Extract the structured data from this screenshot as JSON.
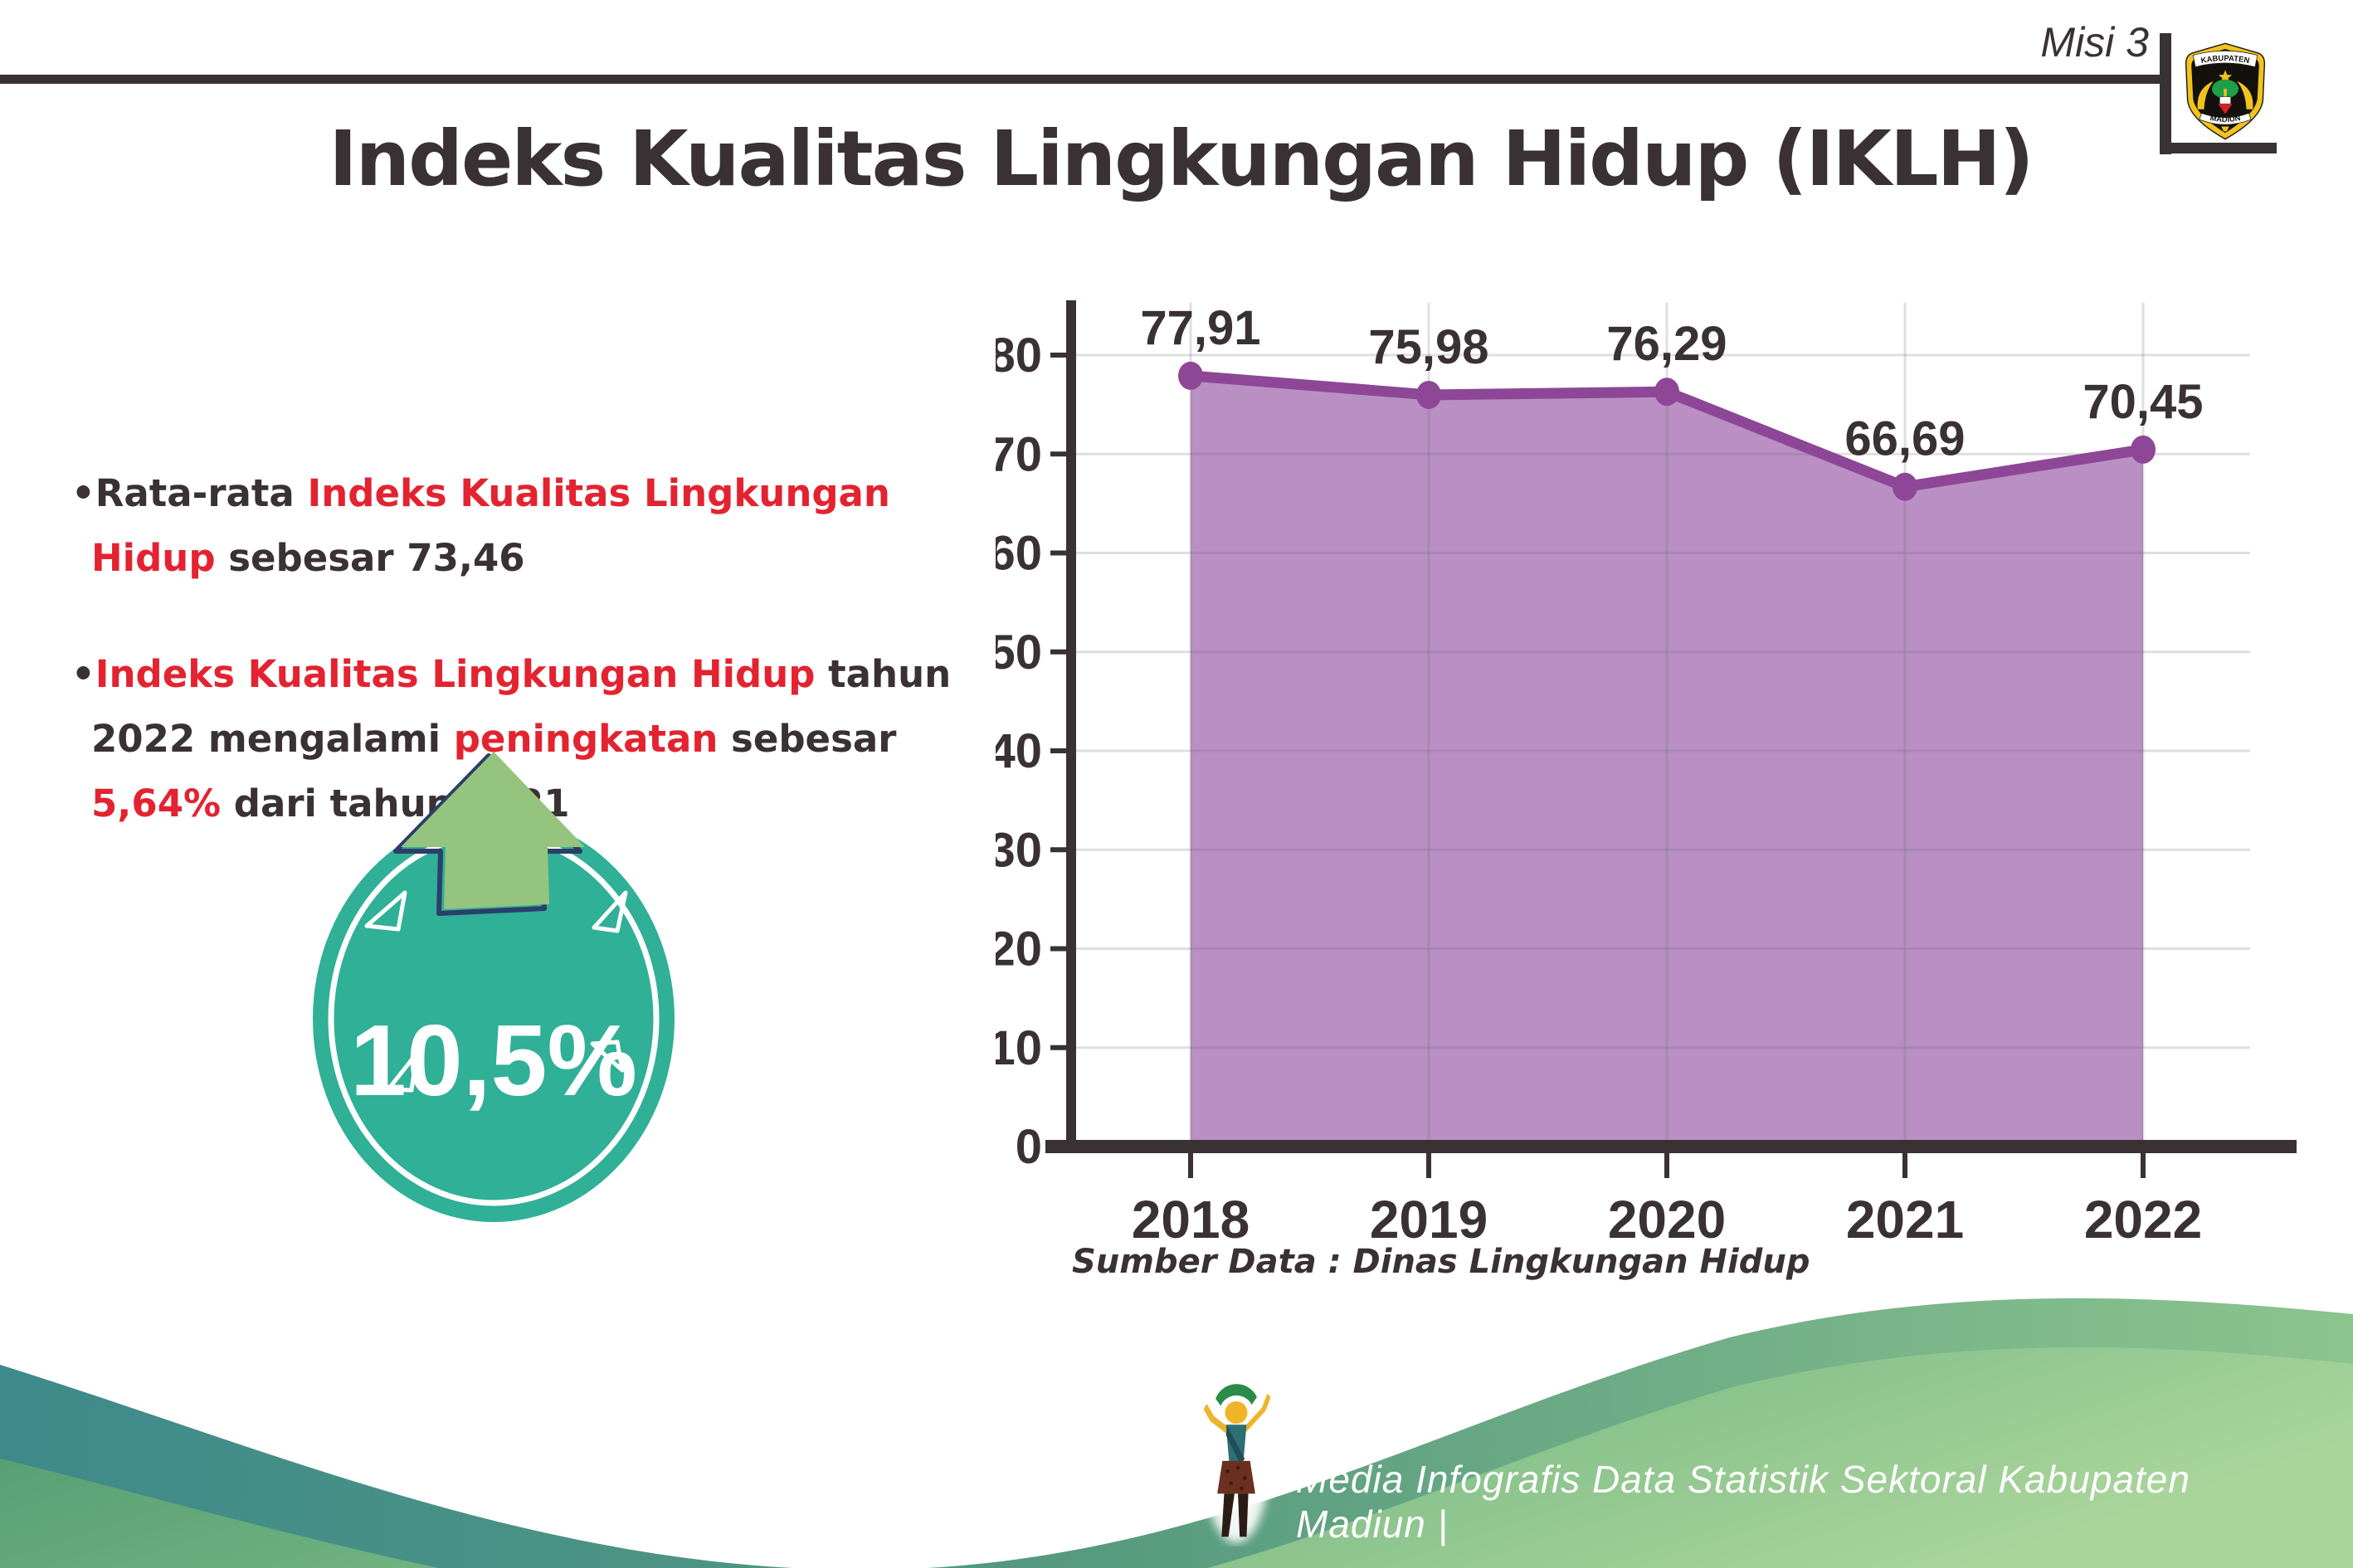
{
  "header": {
    "misi": "Misi 3",
    "title": "Indeks Kualitas Lingkungan Hidup (IKLH)",
    "logo": {
      "top": "KABUPATEN",
      "bottom": "MADIUN"
    }
  },
  "bullets": [
    {
      "segments": [
        {
          "t": "Rata-rata ",
          "c": "dark"
        },
        {
          "t": "Indeks Kualitas Lingkungan Hidup",
          "c": "red"
        },
        {
          "t": " sebesar 73,46",
          "c": "dark"
        }
      ]
    },
    {
      "segments": [
        {
          "t": "Indeks Kualitas Lingkungan Hidup",
          "c": "red"
        },
        {
          "t": " tahun 2022 mengalami ",
          "c": "dark"
        },
        {
          "t": "peningkatan",
          "c": "red"
        },
        {
          "t": " sebesar ",
          "c": "dark"
        },
        {
          "t": "5,64%",
          "c": "red"
        },
        {
          "t": " dari tahun 2021",
          "c": "dark"
        }
      ]
    }
  ],
  "badge": {
    "value": "10,5%"
  },
  "chart_data": {
    "type": "area",
    "categories": [
      "2018",
      "2019",
      "2020",
      "2021",
      "2022"
    ],
    "series": [
      {
        "name": "IKLH",
        "values": [
          77.91,
          75.98,
          76.29,
          66.69,
          70.45
        ]
      }
    ],
    "value_labels": [
      "77,91",
      "75,98",
      "76,29",
      "66,69",
      "70,45"
    ],
    "title": "",
    "xlabel": "",
    "ylabel": "",
    "ylim": [
      0,
      80
    ],
    "ytick_step": 10,
    "yticks": [
      0,
      10,
      20,
      30,
      40,
      50,
      60,
      70,
      80
    ],
    "grid": true,
    "legend": "none",
    "line_color": "#8d4796",
    "fill_color": "#b98fc4",
    "source": "Sumber Data : Dinas Lingkungan Hidup"
  },
  "footer": {
    "text": "Media Infografis Data Statistik Sektoral Kabupaten Madiun |"
  },
  "colors": {
    "accent_red": "#e32330",
    "text_dark": "#3a3134",
    "chart_line": "#8d4796",
    "chart_fill": "#b98fc4",
    "chart_grid": "#dddddd",
    "badge_teal": "#2fb097",
    "badge_arrow_green": "#95c47e",
    "badge_arrow_outline": "#2c3e6b",
    "footer_teal": "#3e8a8b",
    "footer_green": "#579a72",
    "footer_green_light": "#a9d59b",
    "logo_yellow": "#f2c31c",
    "logo_red": "#d42027",
    "logo_green": "#1e9e48"
  }
}
